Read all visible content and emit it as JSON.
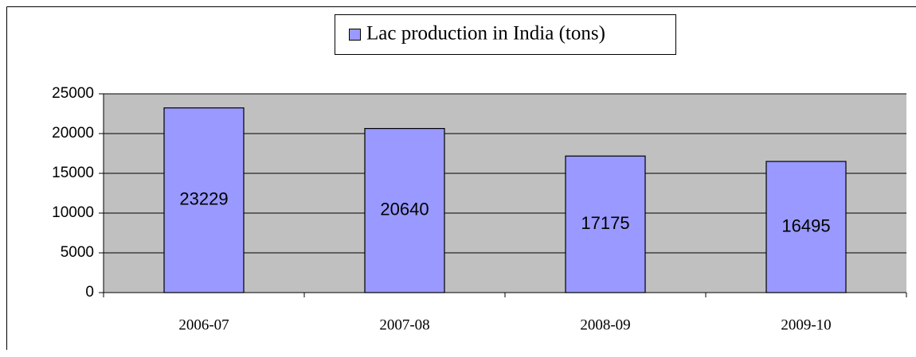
{
  "chart_data": {
    "type": "bar",
    "categories": [
      "2006-07",
      "2007-08",
      "2008-09",
      "2009-10"
    ],
    "series": [
      {
        "name": "Lac production in India (tons)",
        "color": "#9999ff",
        "values": [
          23229,
          20640,
          17175,
          16495
        ]
      }
    ],
    "ylim": [
      0,
      25000
    ],
    "yticks": [
      0,
      5000,
      10000,
      15000,
      20000,
      25000
    ],
    "grid": true,
    "legend": "top",
    "data_labels": true
  }
}
